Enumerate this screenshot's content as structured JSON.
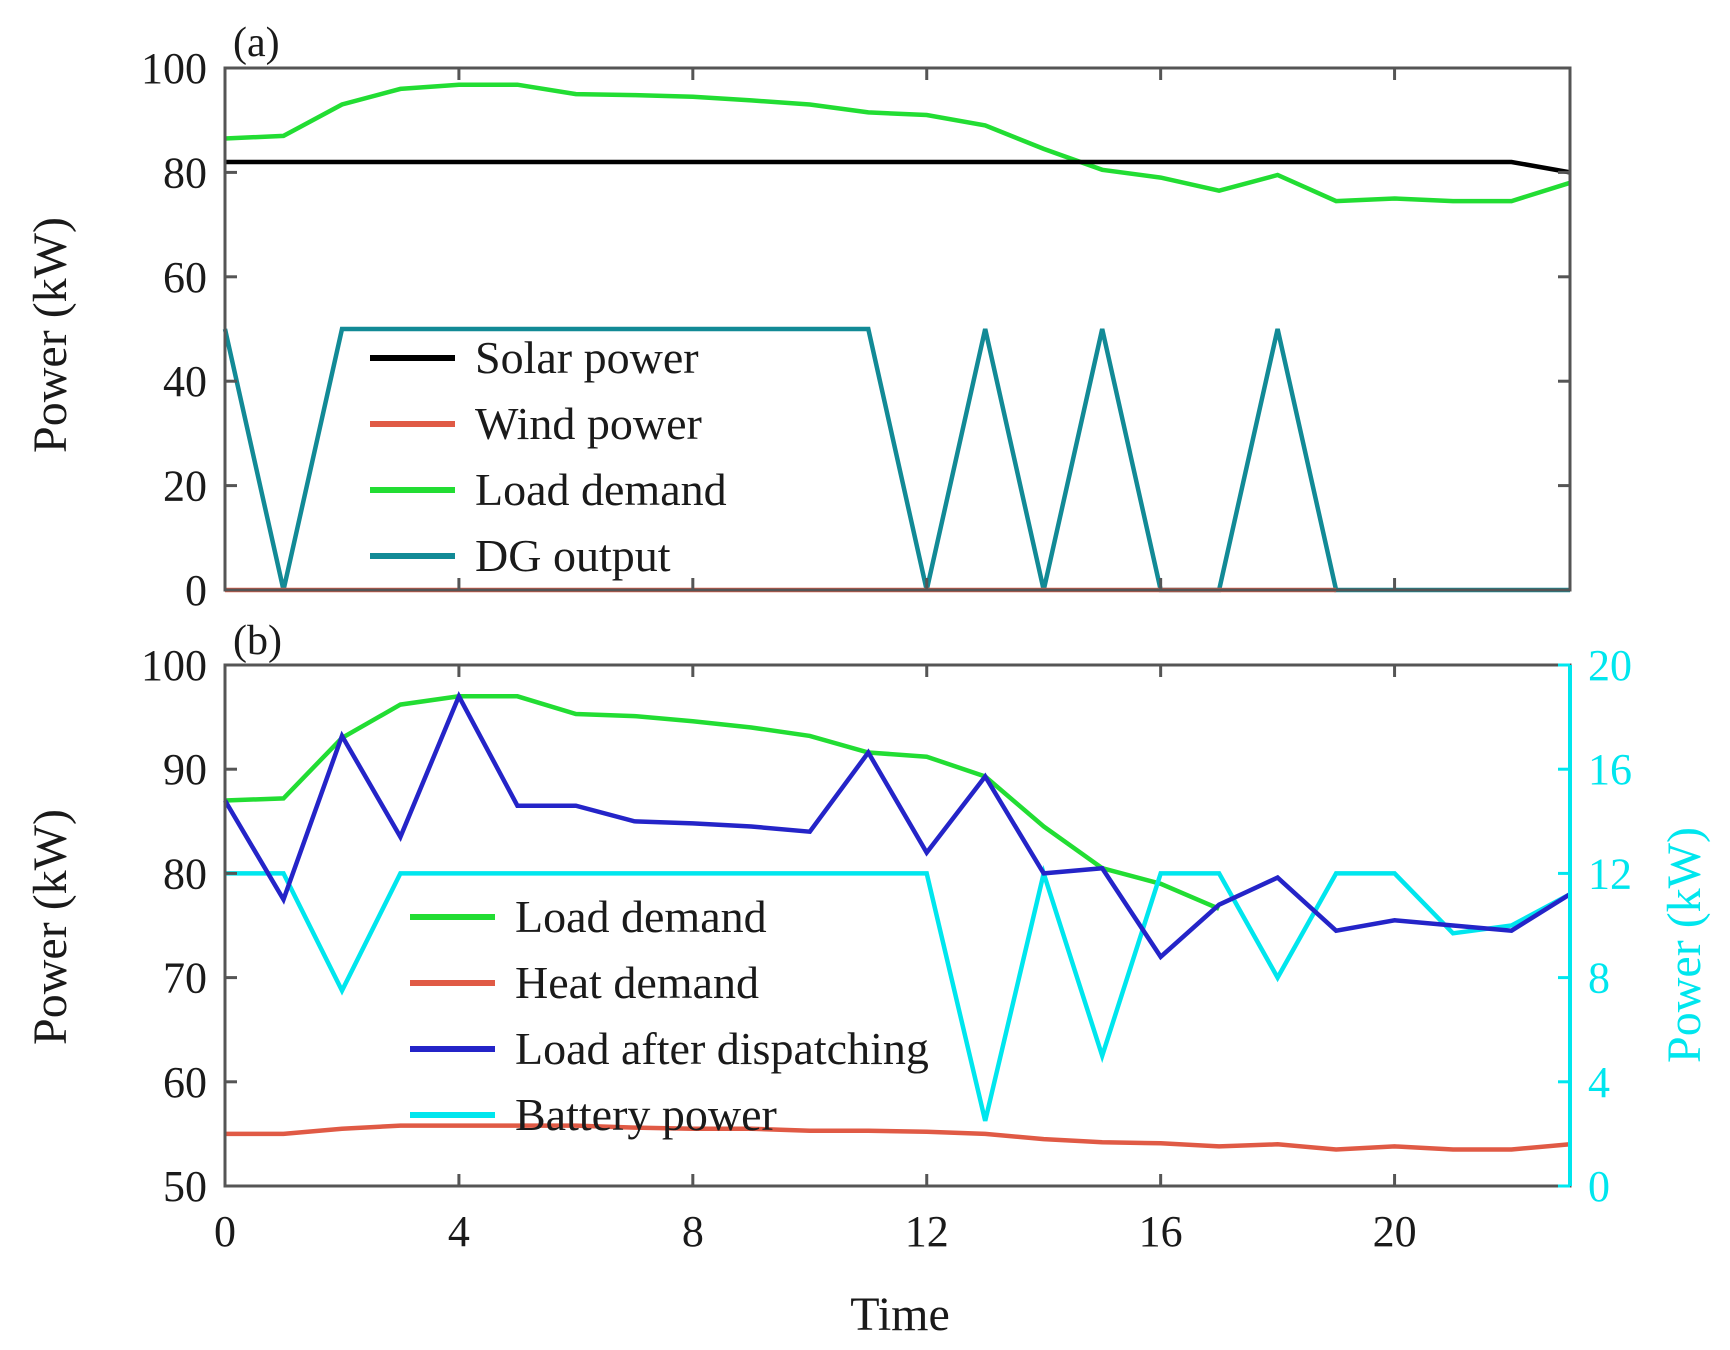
{
  "colors": {
    "solar": "#000000",
    "wind": "#e05a45",
    "load": "#22dd33",
    "dg": "#128a96",
    "heat": "#e05a45",
    "dispatch": "#2424c8",
    "battery": "#00e6ee"
  },
  "chart_data": [
    {
      "type": "line",
      "panel_label": "(a)",
      "ylabel": "Power (kW)",
      "xlim": [
        0,
        23
      ],
      "ylim": [
        0,
        100
      ],
      "yticks": [
        "0",
        "20",
        "40",
        "60",
        "80",
        "100"
      ],
      "legend_position": "left",
      "series": [
        {
          "key": "solar",
          "name": "Solar power",
          "x": [
            0,
            22,
            23
          ],
          "values": [
            82,
            82,
            80
          ]
        },
        {
          "key": "wind",
          "name": "Wind power",
          "x": [
            0,
            19
          ],
          "values": [
            0,
            0
          ]
        },
        {
          "key": "load",
          "name": "Load demand",
          "x": [
            0,
            1,
            2,
            3,
            4,
            5,
            6,
            7,
            8,
            9,
            10,
            11,
            12,
            13,
            14,
            15,
            16,
            17,
            18,
            19,
            20,
            21,
            22,
            23
          ],
          "values": [
            86.5,
            87,
            93,
            96,
            96.8,
            96.8,
            95,
            94.8,
            94.5,
            93.8,
            93,
            91.5,
            91,
            89,
            84.5,
            80.5,
            79,
            76.5,
            79.5,
            74.5,
            75,
            74.5,
            74.5,
            78
          ]
        },
        {
          "key": "dg",
          "name": "DG output",
          "x": [
            0,
            1,
            2,
            11,
            12,
            13,
            14,
            15,
            16,
            17,
            18,
            19,
            23
          ],
          "values": [
            50,
            0,
            50,
            50,
            0,
            50,
            0,
            50,
            0,
            0,
            50,
            0,
            0
          ]
        }
      ]
    },
    {
      "type": "line",
      "panel_label": "(b)",
      "xlabel": "Time",
      "ylabel": "Power (kW)",
      "y2label": "Power (kW)",
      "xlim": [
        0,
        23
      ],
      "ylim": [
        50,
        100
      ],
      "y2lim": [
        0,
        20
      ],
      "xticks": [
        "0",
        "4",
        "8",
        "12",
        "16",
        "20"
      ],
      "yticks": [
        "50",
        "60",
        "70",
        "80",
        "90",
        "100"
      ],
      "y2ticks": [
        "0",
        "4",
        "8",
        "12",
        "16",
        "20"
      ],
      "legend_position": "bottom-center",
      "series": [
        {
          "key": "load",
          "name": "Load demand",
          "axis": "left",
          "x": [
            0,
            1,
            2,
            3,
            4,
            5,
            6,
            7,
            8,
            9,
            10,
            11,
            12,
            13,
            14,
            15,
            16,
            17
          ],
          "values": [
            87,
            87.2,
            93,
            96.2,
            97,
            97,
            95.3,
            95.1,
            94.6,
            94,
            93.2,
            91.6,
            91.2,
            89.3,
            84.5,
            80.5,
            79,
            76.6
          ]
        },
        {
          "key": "heat",
          "name": "Heat demand",
          "axis": "left",
          "x": [
            0,
            1,
            2,
            3,
            4,
            5,
            6,
            7,
            8,
            9,
            10,
            11,
            12,
            13,
            14,
            15,
            16,
            17,
            18,
            19,
            20,
            21,
            22,
            23
          ],
          "values": [
            55,
            55,
            55.5,
            55.8,
            55.8,
            55.8,
            55.8,
            55.6,
            55.5,
            55.5,
            55.3,
            55.3,
            55.2,
            55,
            54.5,
            54.2,
            54.1,
            53.8,
            54,
            53.5,
            53.8,
            53.5,
            53.5,
            54
          ]
        },
        {
          "key": "dispatch",
          "name": "Load after dispatching",
          "axis": "left",
          "x": [
            0,
            1,
            2,
            3,
            4,
            5,
            6,
            7,
            8,
            9,
            10,
            11,
            12,
            13,
            14,
            15,
            16,
            17,
            18,
            19,
            20,
            21,
            22,
            23
          ],
          "values": [
            87,
            77.5,
            93.2,
            83.5,
            97,
            86.5,
            86.5,
            85,
            84.8,
            84.5,
            84,
            91.6,
            82,
            89.3,
            80,
            80.5,
            72,
            77,
            79.6,
            74.5,
            75.5,
            75,
            74.5,
            78
          ]
        },
        {
          "key": "battery",
          "name": "Battery power",
          "axis": "right",
          "x": [
            0,
            1,
            2,
            3,
            4,
            5,
            6,
            7,
            8,
            9,
            10,
            11,
            12,
            13,
            14,
            15,
            16,
            17,
            18,
            19,
            20,
            21,
            22,
            23
          ],
          "values": [
            12,
            12,
            7.5,
            12,
            12,
            12,
            12,
            12,
            12,
            12,
            12,
            12,
            12,
            2.5,
            12,
            5,
            12,
            12,
            8,
            12,
            12,
            9.7,
            10,
            11.2
          ]
        }
      ]
    }
  ]
}
